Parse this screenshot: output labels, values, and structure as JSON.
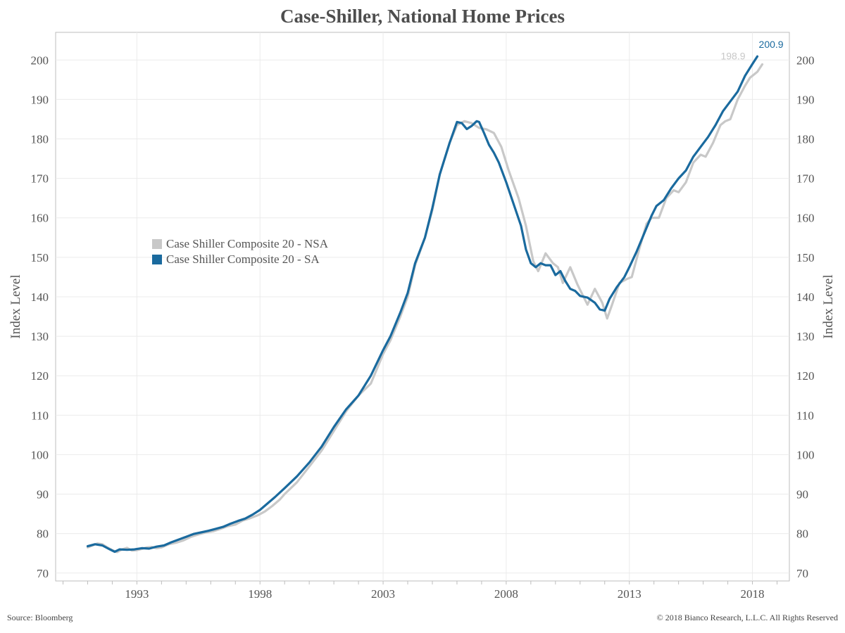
{
  "title": "Case-Shiller, National Home Prices",
  "source": "Source: Bloomberg",
  "copyright": "© 2018 Bianco Research, L.L.C. All Rights Reserved",
  "colors": {
    "nsa": "#c8c8c8",
    "sa": "#1a6a9e",
    "grid": "#ebebeb",
    "axis": "#bdbdbd"
  },
  "chart_data": {
    "type": "line",
    "ylabel": "Index Level",
    "ylabel_right": "Index Level",
    "ylim": [
      68,
      207
    ],
    "y_ticks": [
      70,
      80,
      90,
      100,
      110,
      120,
      130,
      140,
      150,
      160,
      170,
      180,
      190,
      200
    ],
    "xlim": [
      1989.7,
      2019.5
    ],
    "x_ticks": [
      1993,
      1998,
      2003,
      2008,
      2013,
      2018
    ],
    "grid": true,
    "legend_position": "center-left",
    "series": [
      {
        "name": "Case Shiller Composite 20 - NSA",
        "end_label": "198.9",
        "points": [
          [
            1991.0,
            76.5
          ],
          [
            1991.2,
            77.0
          ],
          [
            1991.4,
            77.5
          ],
          [
            1991.6,
            77.3
          ],
          [
            1991.8,
            76.5
          ],
          [
            1992.0,
            75.8
          ],
          [
            1992.2,
            75.3
          ],
          [
            1992.4,
            76.0
          ],
          [
            1992.6,
            76.4
          ],
          [
            1992.8,
            75.7
          ],
          [
            1993.0,
            75.8
          ],
          [
            1993.2,
            76.1
          ],
          [
            1993.4,
            76.5
          ],
          [
            1993.6,
            76.6
          ],
          [
            1993.8,
            76.3
          ],
          [
            1994.0,
            76.5
          ],
          [
            1994.3,
            77.3
          ],
          [
            1994.6,
            77.7
          ],
          [
            1994.9,
            78.3
          ],
          [
            1995.2,
            79.2
          ],
          [
            1995.5,
            79.8
          ],
          [
            1995.8,
            80.3
          ],
          [
            1996.1,
            80.6
          ],
          [
            1996.4,
            81.2
          ],
          [
            1996.7,
            81.9
          ],
          [
            1997.0,
            82.3
          ],
          [
            1997.3,
            83.3
          ],
          [
            1997.6,
            83.9
          ],
          [
            1997.9,
            84.6
          ],
          [
            1998.2,
            85.6
          ],
          [
            1998.5,
            87.0
          ],
          [
            1998.8,
            88.6
          ],
          [
            1999.0,
            90.0
          ],
          [
            1999.5,
            93.0
          ],
          [
            2000.0,
            97.0
          ],
          [
            2000.5,
            101.0
          ],
          [
            2001.0,
            106.0
          ],
          [
            2001.5,
            111.0
          ],
          [
            2002.0,
            115.0
          ],
          [
            2002.5,
            118.0
          ],
          [
            2003.0,
            125.5
          ],
          [
            2003.3,
            129.0
          ],
          [
            2003.7,
            135.0
          ],
          [
            2004.0,
            140.0
          ],
          [
            2004.3,
            148.0
          ],
          [
            2004.7,
            155.0
          ],
          [
            2005.0,
            162.0
          ],
          [
            2005.3,
            171.0
          ],
          [
            2005.7,
            179.0
          ],
          [
            2006.0,
            183.5
          ],
          [
            2006.3,
            184.5
          ],
          [
            2006.6,
            184.0
          ],
          [
            2006.9,
            182.8
          ],
          [
            2007.2,
            182.4
          ],
          [
            2007.5,
            181.5
          ],
          [
            2007.8,
            178.0
          ],
          [
            2008.1,
            172.0
          ],
          [
            2008.5,
            165.0
          ],
          [
            2008.8,
            158.0
          ],
          [
            2009.1,
            149.0
          ],
          [
            2009.3,
            146.5
          ],
          [
            2009.6,
            151.0
          ],
          [
            2009.9,
            148.5
          ],
          [
            2010.1,
            147.5
          ],
          [
            2010.3,
            143.5
          ],
          [
            2010.6,
            147.5
          ],
          [
            2010.9,
            143.0
          ],
          [
            2011.1,
            140.5
          ],
          [
            2011.3,
            138.0
          ],
          [
            2011.6,
            142.0
          ],
          [
            2011.9,
            138.5
          ],
          [
            2012.1,
            134.5
          ],
          [
            2012.3,
            138.0
          ],
          [
            2012.6,
            143.5
          ],
          [
            2012.9,
            144.5
          ],
          [
            2013.1,
            145.0
          ],
          [
            2013.4,
            152.0
          ],
          [
            2013.7,
            158.5
          ],
          [
            2013.9,
            160.0
          ],
          [
            2014.2,
            160.0
          ],
          [
            2014.5,
            165.0
          ],
          [
            2014.8,
            167.0
          ],
          [
            2015.0,
            166.5
          ],
          [
            2015.3,
            169.0
          ],
          [
            2015.6,
            174.0
          ],
          [
            2015.9,
            176.0
          ],
          [
            2016.1,
            175.5
          ],
          [
            2016.4,
            179.0
          ],
          [
            2016.7,
            183.5
          ],
          [
            2016.9,
            184.5
          ],
          [
            2017.1,
            185.0
          ],
          [
            2017.4,
            190.0
          ],
          [
            2017.7,
            193.5
          ],
          [
            2017.9,
            195.5
          ],
          [
            2018.2,
            197.0
          ],
          [
            2018.4,
            198.9
          ]
        ]
      },
      {
        "name": "Case Shiller Composite 20 - SA",
        "end_label": "200.9",
        "points": [
          [
            1991.0,
            76.8
          ],
          [
            1991.3,
            77.3
          ],
          [
            1991.6,
            77.0
          ],
          [
            1991.9,
            76.0
          ],
          [
            1992.1,
            75.4
          ],
          [
            1992.3,
            76.0
          ],
          [
            1992.6,
            75.9
          ],
          [
            1992.9,
            76.0
          ],
          [
            1993.2,
            76.3
          ],
          [
            1993.5,
            76.2
          ],
          [
            1993.8,
            76.7
          ],
          [
            1994.1,
            77.0
          ],
          [
            1994.4,
            77.8
          ],
          [
            1994.7,
            78.5
          ],
          [
            1995.0,
            79.2
          ],
          [
            1995.3,
            79.9
          ],
          [
            1995.6,
            80.3
          ],
          [
            1995.9,
            80.7
          ],
          [
            1996.2,
            81.2
          ],
          [
            1996.5,
            81.7
          ],
          [
            1996.8,
            82.5
          ],
          [
            1997.1,
            83.2
          ],
          [
            1997.4,
            83.8
          ],
          [
            1997.7,
            84.8
          ],
          [
            1998.0,
            86.0
          ],
          [
            1998.3,
            87.6
          ],
          [
            1998.6,
            89.2
          ],
          [
            1999.0,
            91.5
          ],
          [
            1999.5,
            94.5
          ],
          [
            2000.0,
            98.0
          ],
          [
            2000.5,
            102.0
          ],
          [
            2001.0,
            107.0
          ],
          [
            2001.5,
            111.5
          ],
          [
            2002.0,
            115.0
          ],
          [
            2002.5,
            120.0
          ],
          [
            2003.0,
            126.5
          ],
          [
            2003.3,
            130.0
          ],
          [
            2003.7,
            136.0
          ],
          [
            2004.0,
            141.0
          ],
          [
            2004.3,
            148.5
          ],
          [
            2004.7,
            155.0
          ],
          [
            2005.0,
            162.5
          ],
          [
            2005.3,
            171.0
          ],
          [
            2005.7,
            179.0
          ],
          [
            2006.0,
            184.3
          ],
          [
            2006.2,
            184.0
          ],
          [
            2006.4,
            182.5
          ],
          [
            2006.6,
            183.3
          ],
          [
            2006.8,
            184.5
          ],
          [
            2006.9,
            184.3
          ],
          [
            2007.1,
            181.5
          ],
          [
            2007.3,
            178.5
          ],
          [
            2007.5,
            176.5
          ],
          [
            2007.7,
            174.0
          ],
          [
            2008.0,
            169.0
          ],
          [
            2008.3,
            163.5
          ],
          [
            2008.6,
            158.0
          ],
          [
            2008.8,
            152.0
          ],
          [
            2009.0,
            148.5
          ],
          [
            2009.2,
            147.5
          ],
          [
            2009.4,
            148.5
          ],
          [
            2009.6,
            148.0
          ],
          [
            2009.8,
            148.0
          ],
          [
            2010.0,
            145.5
          ],
          [
            2010.2,
            146.5
          ],
          [
            2010.4,
            144.0
          ],
          [
            2010.6,
            142.0
          ],
          [
            2010.8,
            141.5
          ],
          [
            2011.0,
            140.2
          ],
          [
            2011.3,
            139.8
          ],
          [
            2011.6,
            138.5
          ],
          [
            2011.8,
            136.8
          ],
          [
            2012.0,
            136.5
          ],
          [
            2012.2,
            139.5
          ],
          [
            2012.5,
            142.5
          ],
          [
            2012.8,
            145.0
          ],
          [
            2013.0,
            147.5
          ],
          [
            2013.3,
            151.5
          ],
          [
            2013.6,
            156.0
          ],
          [
            2013.9,
            160.5
          ],
          [
            2014.1,
            163.0
          ],
          [
            2014.4,
            164.5
          ],
          [
            2014.7,
            167.5
          ],
          [
            2015.0,
            170.0
          ],
          [
            2015.3,
            172.0
          ],
          [
            2015.6,
            175.5
          ],
          [
            2015.9,
            178.0
          ],
          [
            2016.2,
            180.5
          ],
          [
            2016.5,
            183.5
          ],
          [
            2016.8,
            187.0
          ],
          [
            2017.1,
            189.5
          ],
          [
            2017.4,
            192.0
          ],
          [
            2017.7,
            196.0
          ],
          [
            2018.0,
            199.0
          ],
          [
            2018.2,
            200.9
          ]
        ]
      }
    ]
  }
}
